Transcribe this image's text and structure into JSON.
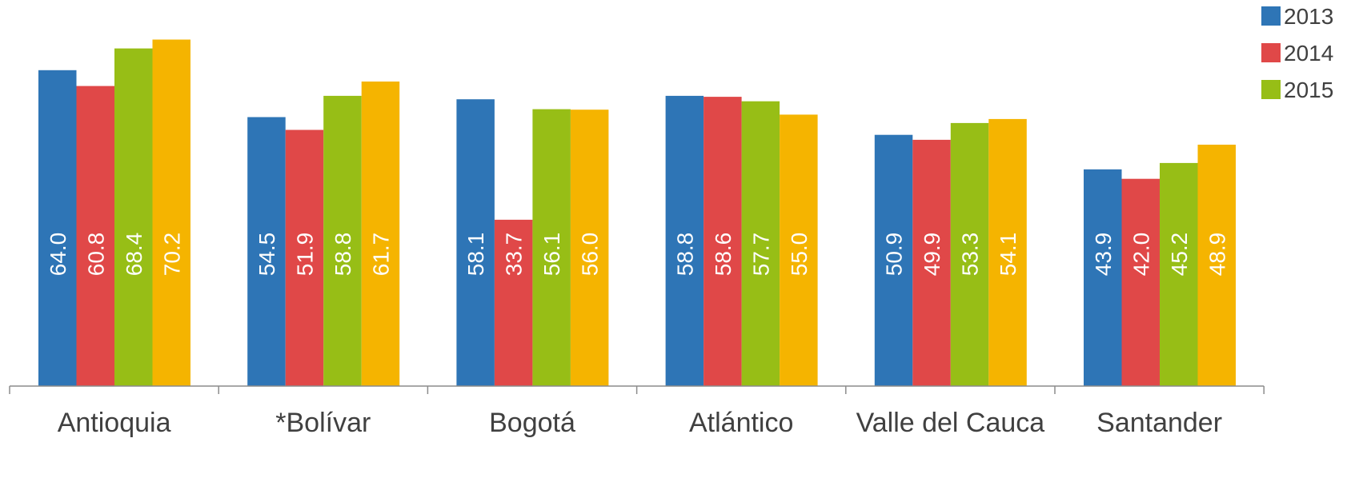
{
  "chart_data": {
    "type": "bar",
    "title": "",
    "xlabel": "",
    "ylabel": "",
    "ylim": [
      0,
      74
    ],
    "grid": false,
    "legend_position": "top-right",
    "categories": [
      "Antioquia",
      "*Bolívar",
      "Bogotá",
      "Atlántico",
      "Valle del Cauca",
      "Santander"
    ],
    "series": [
      {
        "name": "2013",
        "color": "#2E75B6",
        "values": [
          64.0,
          54.5,
          58.1,
          58.8,
          50.9,
          43.9
        ]
      },
      {
        "name": "2014",
        "color": "#E04848",
        "values": [
          60.8,
          51.9,
          33.7,
          58.6,
          49.9,
          42.0
        ]
      },
      {
        "name": "2015",
        "color": "#97BE16",
        "values": [
          68.4,
          58.8,
          56.1,
          57.7,
          53.3,
          45.2
        ]
      },
      {
        "name": "",
        "color": "#F5B400",
        "values": [
          70.2,
          61.7,
          56.0,
          55.0,
          54.1,
          48.9
        ]
      }
    ],
    "value_labels": [
      [
        "64.0",
        "54.5",
        "58.1",
        "58.8",
        "50.9",
        "43.9"
      ],
      [
        "60.8",
        "51.9",
        "33.7",
        "58.6",
        "49.9",
        "42.0"
      ],
      [
        "68.4",
        "58.8",
        "56.1",
        "57.7",
        "53.3",
        "45.2"
      ],
      [
        "70.2",
        "61.7",
        "56.0",
        "55.0",
        "54.1",
        "48.9"
      ]
    ]
  }
}
